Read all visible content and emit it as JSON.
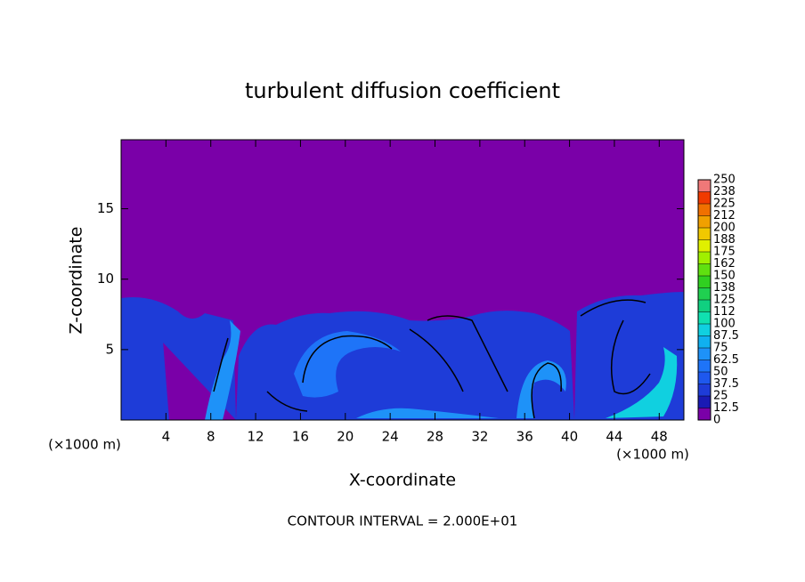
{
  "chart_data": {
    "type": "contour",
    "title": "turbulent diffusion coefficient",
    "x_label": "X-coordinate",
    "y_label": "Z-coordinate",
    "x_unit": "(×1000 m)",
    "y_unit": "(×1000 m)",
    "xlim": [
      0,
      50.2
    ],
    "ylim": [
      0,
      19.9
    ],
    "xticks": [
      4,
      8,
      12,
      16,
      20,
      24,
      28,
      32,
      36,
      40,
      44,
      48
    ],
    "yticks": [
      5,
      10,
      15
    ],
    "colorbar": {
      "ticks": [
        0,
        12.5,
        25,
        37.5,
        50,
        62.5,
        75,
        87.5,
        100,
        {
          "value": 112.5,
          "label": "112"
        },
        125,
        {
          "value": 137.5,
          "label": "138"
        },
        150,
        {
          "value": 162.5,
          "label": "162"
        },
        175,
        {
          "value": 187.5,
          "label": "188"
        },
        200,
        {
          "value": 212.5,
          "label": "212"
        },
        225,
        {
          "value": 237.5,
          "label": "238"
        },
        250
      ],
      "colors": [
        "#7a00a8",
        "#1a1ab4",
        "#1e3cd8",
        "#1e58ee",
        "#1e74f8",
        "#1e92f8",
        "#10b0f0",
        "#10d0e0",
        "#10e0b0",
        "#10d080",
        "#20d050",
        "#30d020",
        "#60e010",
        "#a0f000",
        "#e0f000",
        "#f0c800",
        "#f0a000",
        "#f07000",
        "#f03a00",
        "#f07878"
      ]
    },
    "contour_interval": "CONTOUR INTERVAL = 2.000E+01"
  }
}
